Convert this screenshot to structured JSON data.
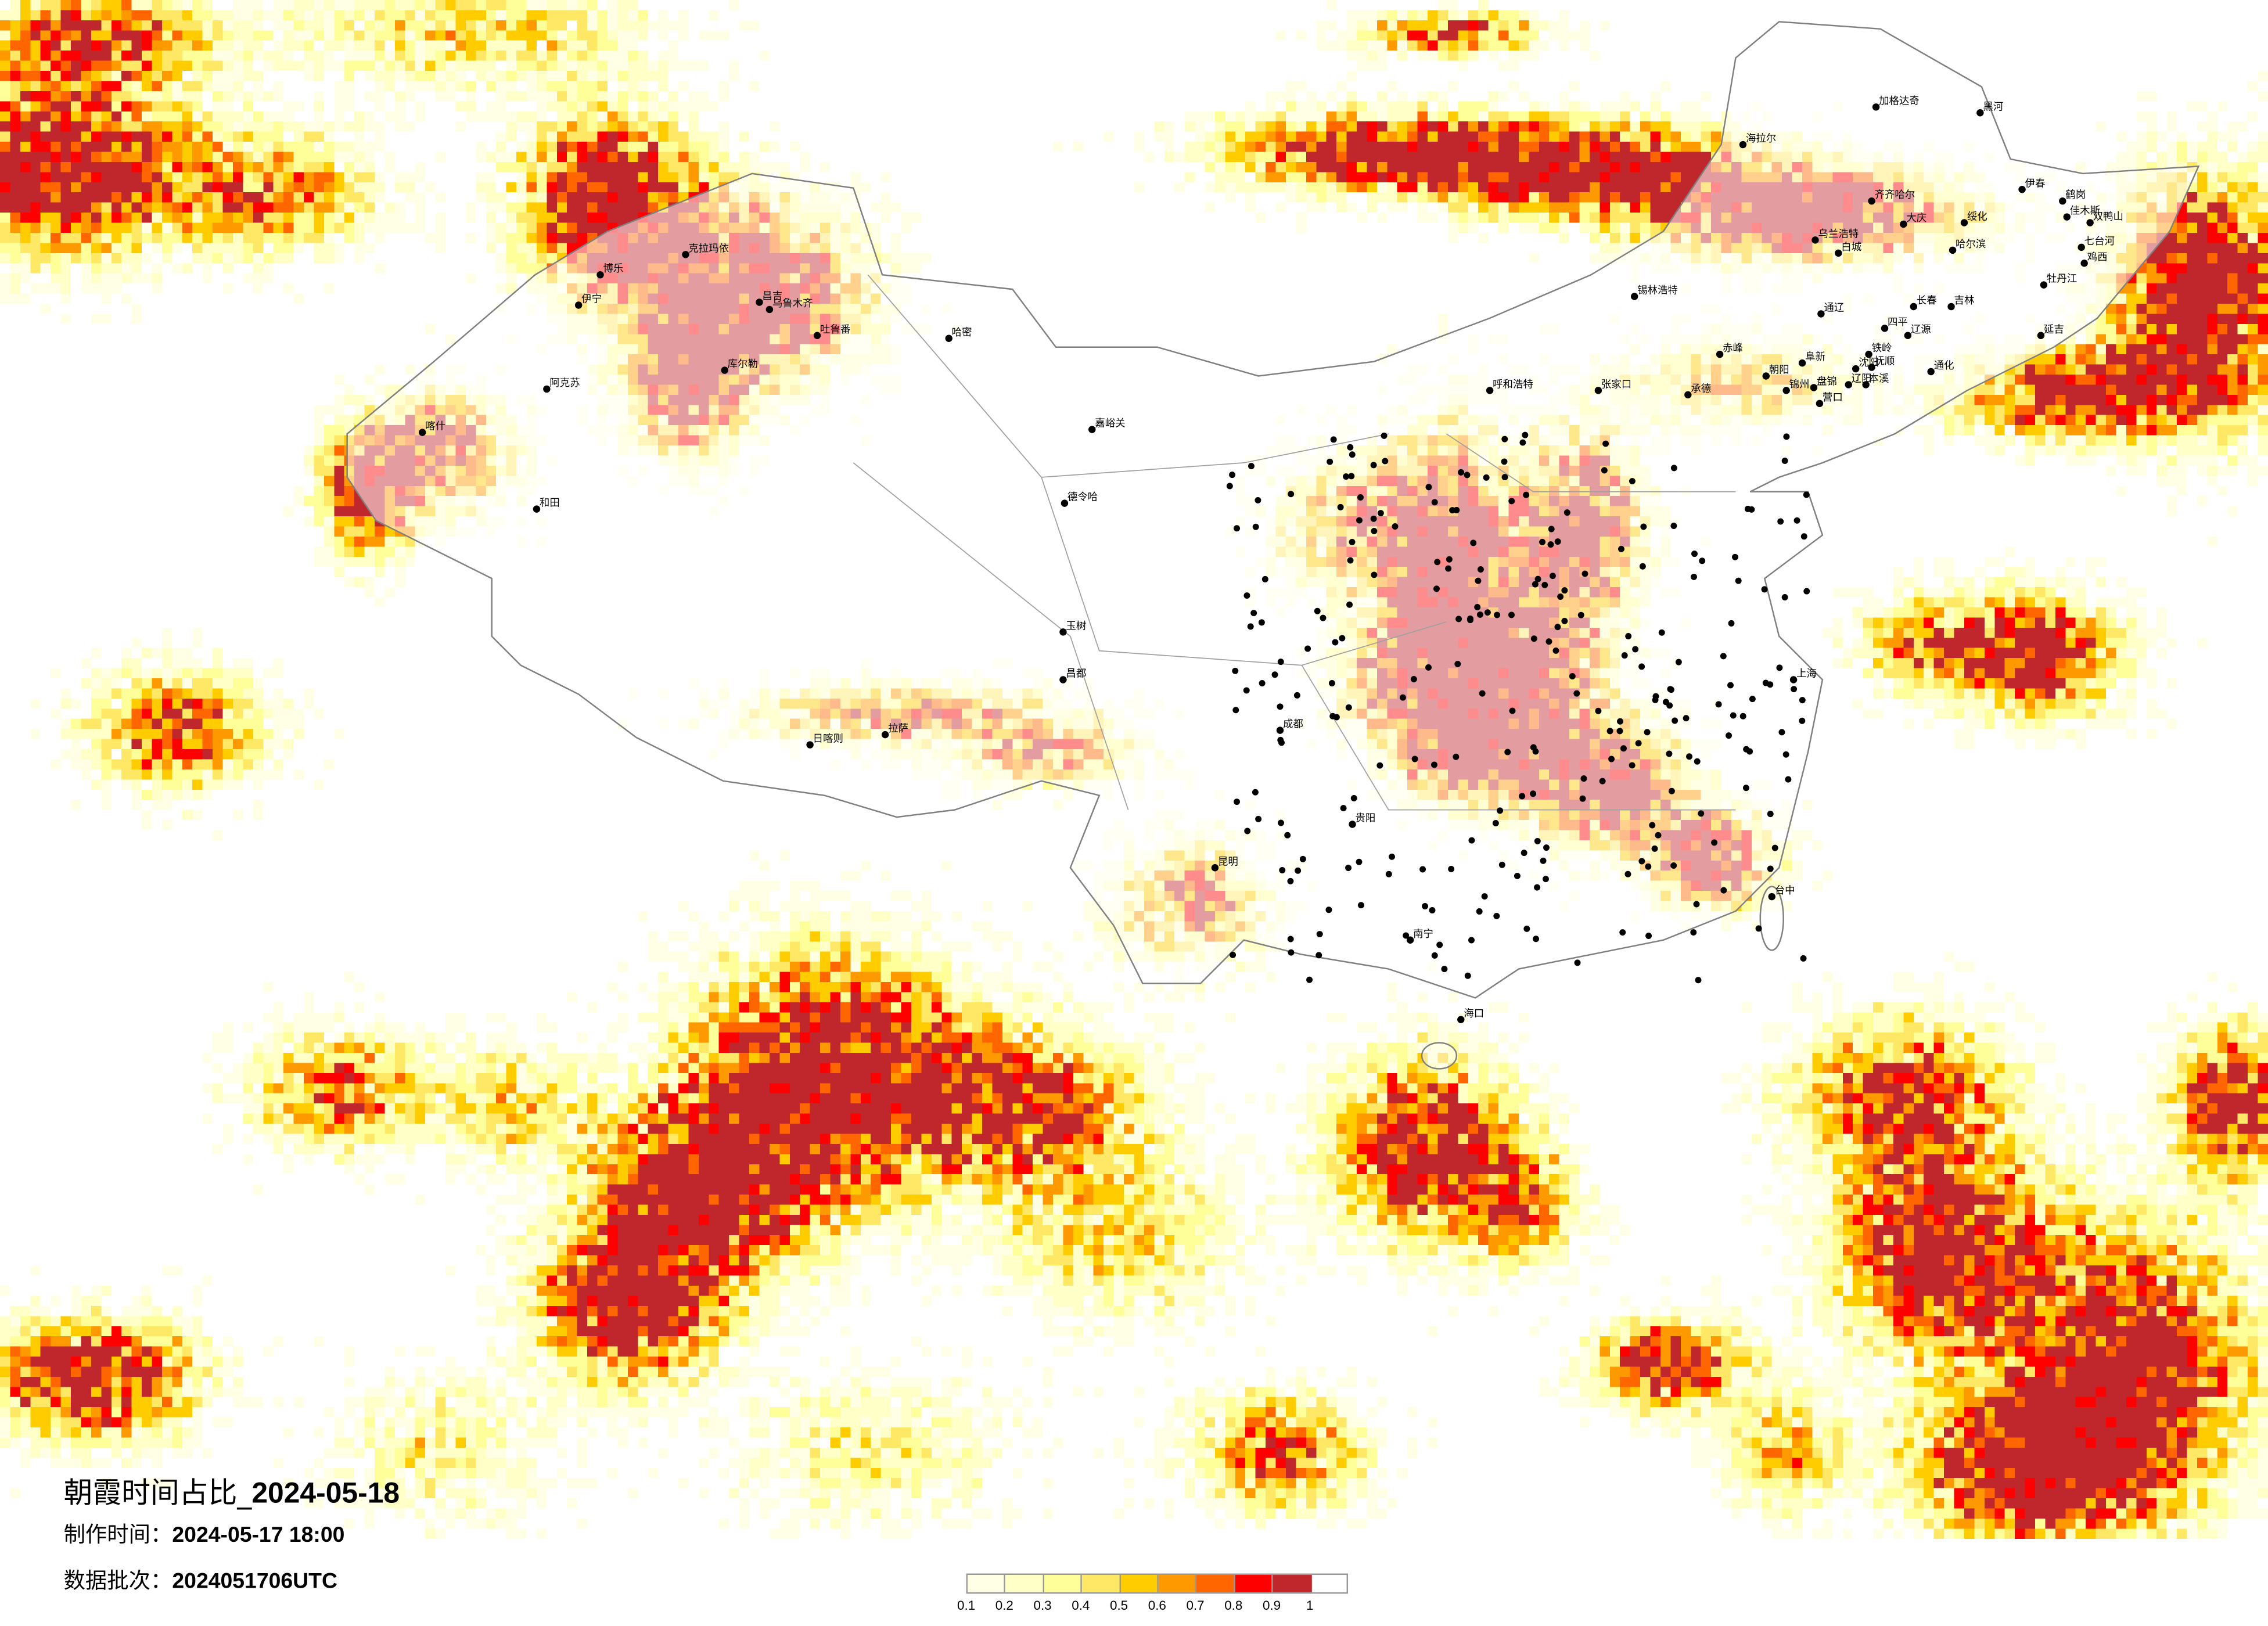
{
  "title": {
    "prefix": "朝霞时间占比_",
    "date": "2024-05-18"
  },
  "meta": [
    {
      "label": "制作时间：",
      "value": "2024-05-17 18:00"
    },
    {
      "label": "数据批次：",
      "value": "2024051706UTC"
    }
  ],
  "legend": {
    "colors": [
      "#FFFFE6",
      "#FFFFC8",
      "#FFFF99",
      "#FFE866",
      "#FFCC00",
      "#FF9900",
      "#FF6600",
      "#FF0000",
      "#C0272D"
    ],
    "ticks": [
      "0.1",
      "0.2",
      "0.3",
      "0.4",
      "0.5",
      "0.6",
      "0.7",
      "0.8",
      "0.9",
      "1"
    ]
  },
  "map": {
    "border_color": "#808080",
    "city_marker_color": "#000000",
    "cities": [
      "加格达奇",
      "黑河",
      "海拉尔",
      "伊春",
      "齐齐哈尔",
      "鹤岗",
      "佳木斯",
      "双鸭山",
      "大庆",
      "绥化",
      "乌兰浩特",
      "白城",
      "哈尔滨",
      "七台河",
      "鸡西",
      "牡丹江",
      "长春",
      "吉林",
      "通辽",
      "四平",
      "辽源",
      "延吉",
      "赤峰",
      "阜新",
      "铁岭",
      "沈阳",
      "抚顺",
      "朝阳",
      "锦州",
      "盘锦",
      "辽阳",
      "本溪",
      "营口",
      "承德",
      "通化",
      "克拉玛依",
      "博乐",
      "伊宁",
      "昌吉",
      "乌鲁木齐",
      "吐鲁番",
      "哈密",
      "库尔勒",
      "阿克苏",
      "喀什",
      "和田",
      "嘉峪关",
      "德令哈",
      "拉萨",
      "日喀则",
      "昌都",
      "玉树",
      "成都",
      "贵阳",
      "昆明",
      "南宁",
      "海口",
      "上海",
      "台中",
      "呼和浩特",
      "张家口",
      "锡林浩特"
    ]
  }
}
